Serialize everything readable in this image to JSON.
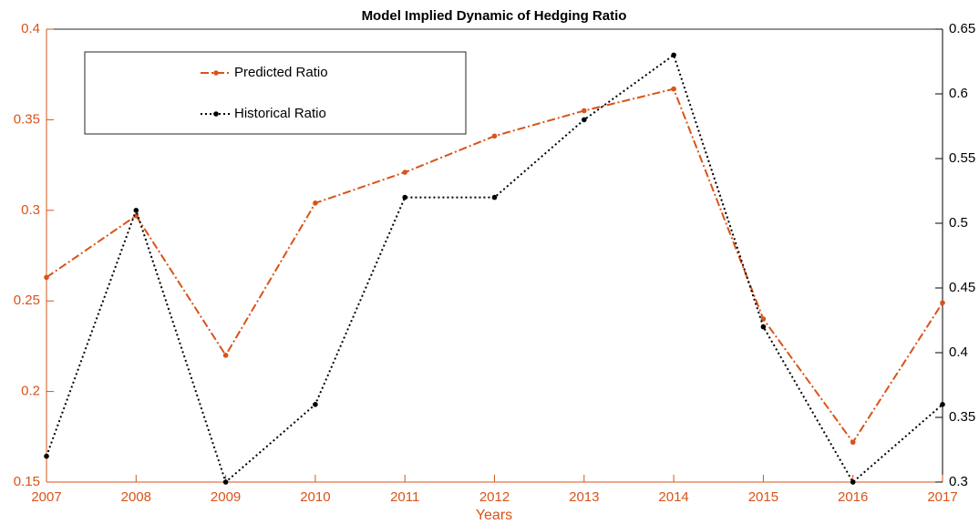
{
  "chart_data": {
    "type": "line",
    "title": "Model Implied Dynamic of Hedging Ratio",
    "x_label": "Years",
    "x": [
      2007,
      2008,
      2009,
      2010,
      2011,
      2012,
      2013,
      2014,
      2015,
      2016,
      2017
    ],
    "xlim": [
      2007,
      2017
    ],
    "xticks": [
      2007,
      2008,
      2009,
      2010,
      2011,
      2012,
      2013,
      2014,
      2015,
      2016,
      2017
    ],
    "ylim": [
      0.15,
      0.4
    ],
    "yticks": [
      0.15,
      0.2,
      0.25,
      0.3,
      0.35,
      0.4
    ],
    "y2lim": [
      0.3,
      0.65
    ],
    "y2ticks": [
      0.3,
      0.35,
      0.4,
      0.45,
      0.5,
      0.55,
      0.6,
      0.65
    ],
    "legend": "upper left",
    "series": [
      {
        "name": "Predicted Ratio",
        "color": "#d95319",
        "axis": "y",
        "line_style": "dash-dot",
        "values": [
          0.263,
          0.297,
          0.22,
          0.304,
          0.321,
          0.341,
          0.355,
          0.367,
          0.24,
          0.172,
          0.249
        ]
      },
      {
        "name": "Historical Ratio",
        "color": "#000000",
        "axis": "y2",
        "line_style": "dotted",
        "values": [
          0.32,
          0.51,
          0.3,
          0.36,
          0.52,
          0.52,
          0.58,
          0.63,
          0.42,
          0.3,
          0.36
        ]
      }
    ]
  }
}
